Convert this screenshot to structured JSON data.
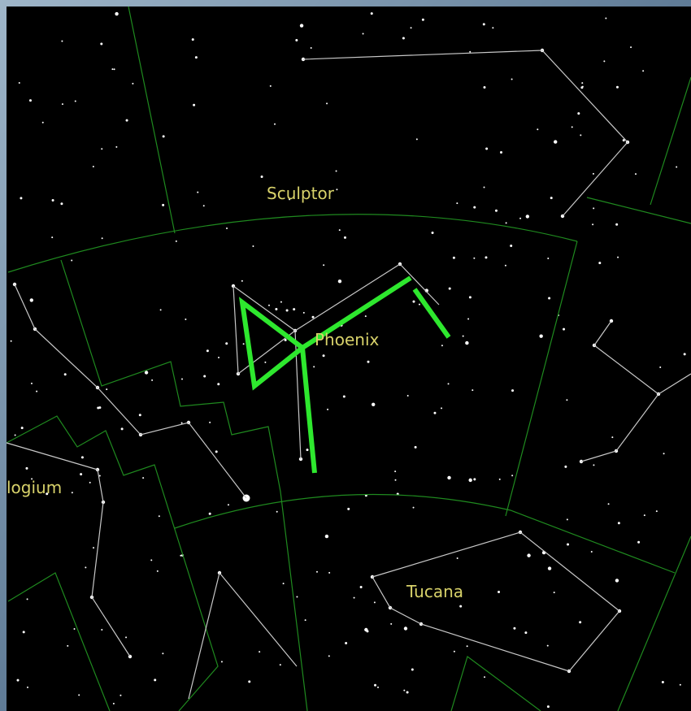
{
  "labels": {
    "sculptor": "Sculptor",
    "phoenix": "Phoenix",
    "horologium": "logium",
    "tucana": "Tucana"
  }
}
